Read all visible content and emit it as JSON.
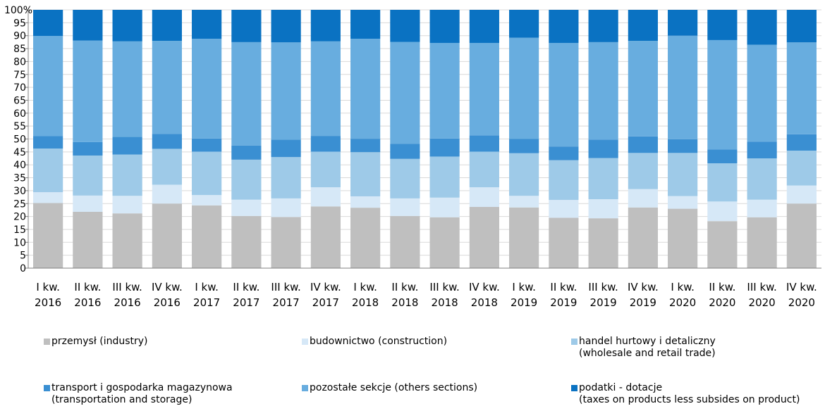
{
  "chart_data": {
    "type": "bar",
    "stacked": true,
    "y_axis": {
      "min": 0,
      "max": 100,
      "step": 5,
      "ticks": [
        "0",
        "5",
        "10",
        "15",
        "20",
        "25",
        "30",
        "35",
        "40",
        "45",
        "50",
        "55",
        "60",
        "65",
        "70",
        "75",
        "80",
        "85",
        "90",
        "95",
        "100%"
      ]
    },
    "grid": true,
    "legend_position": "bottom",
    "categories": [
      [
        "I kw.",
        "2016"
      ],
      [
        "II kw.",
        "2016"
      ],
      [
        "III kw.",
        "2016"
      ],
      [
        "IV kw.",
        "2016"
      ],
      [
        "I kw.",
        "2017"
      ],
      [
        "II kw.",
        "2017"
      ],
      [
        "III kw.",
        "2017"
      ],
      [
        "IV kw.",
        "2017"
      ],
      [
        "I kw.",
        "2018"
      ],
      [
        "II kw.",
        "2018"
      ],
      [
        "III kw.",
        "2018"
      ],
      [
        "IV kw.",
        "2018"
      ],
      [
        "I kw.",
        "2019"
      ],
      [
        "II kw.",
        "2019"
      ],
      [
        "III kw.",
        "2019"
      ],
      [
        "IV kw.",
        "2019"
      ],
      [
        "I kw.",
        "2020"
      ],
      [
        "II kw.",
        "2020"
      ],
      [
        "III kw.",
        "2020"
      ],
      [
        "IV kw.",
        "2020"
      ]
    ],
    "series": [
      {
        "name": [
          "przemysł (industry)"
        ],
        "color": "#bfbfbf",
        "values": [
          25.2,
          21.8,
          21.2,
          25.0,
          24.3,
          20.2,
          19.8,
          23.9,
          23.4,
          20.2,
          19.7,
          23.7,
          23.5,
          19.5,
          19.3,
          23.5,
          23.0,
          18.2,
          19.7,
          25.0
        ]
      },
      {
        "name": [
          "budownictwo (construction)"
        ],
        "color": "#d6e8f7",
        "values": [
          4.2,
          6.3,
          6.8,
          7.3,
          4.0,
          6.3,
          7.2,
          7.4,
          4.4,
          6.8,
          7.6,
          7.6,
          4.5,
          6.9,
          7.4,
          7.1,
          4.9,
          7.6,
          6.8,
          7.0
        ]
      },
      {
        "name": [
          "handel hurtowy i detaliczny",
          "(wholesale and retail trade)"
        ],
        "color": "#9ecae8",
        "values": [
          16.9,
          15.5,
          16.0,
          13.9,
          16.8,
          15.5,
          16.0,
          13.8,
          17.1,
          15.3,
          15.9,
          13.8,
          16.5,
          15.4,
          15.9,
          14.0,
          16.7,
          14.8,
          16.0,
          13.5
        ]
      },
      {
        "name": [
          "transport i gospodarka magazynowa",
          "(transportation and storage)"
        ],
        "color": "#3a8fd2",
        "values": [
          4.8,
          5.2,
          6.8,
          5.8,
          5.1,
          5.5,
          6.8,
          6.1,
          5.2,
          5.8,
          7.0,
          6.3,
          5.5,
          5.3,
          7.2,
          6.4,
          5.3,
          5.4,
          6.5,
          6.3
        ]
      },
      {
        "name": [
          "pozostałe sekcje (others sections)"
        ],
        "color": "#68addf",
        "values": [
          38.8,
          39.3,
          37.0,
          36.0,
          38.6,
          40.0,
          37.6,
          36.6,
          38.7,
          39.5,
          37.0,
          35.8,
          39.2,
          40.1,
          37.7,
          37.0,
          40.1,
          42.3,
          37.5,
          35.6
        ]
      },
      {
        "name": [
          "podatki - dotacje",
          "(taxes on products less subsides on product)"
        ],
        "color": "#0a72c2",
        "values": [
          10.1,
          11.9,
          12.2,
          12.0,
          11.2,
          12.5,
          12.6,
          12.2,
          11.2,
          12.4,
          12.8,
          12.8,
          10.8,
          12.8,
          12.5,
          12.0,
          10.0,
          11.7,
          13.5,
          12.6
        ]
      }
    ]
  }
}
